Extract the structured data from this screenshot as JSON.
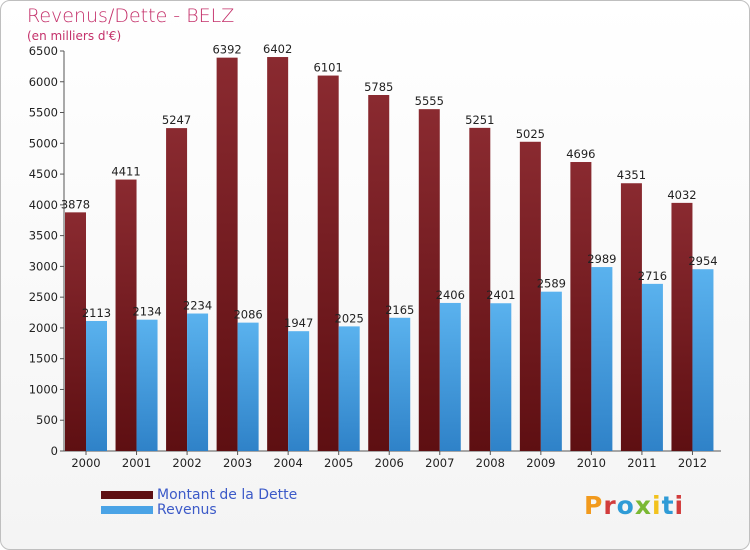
{
  "title": "Revenus/Dette - BELZ",
  "subtitle": "(en milliers d'€)",
  "legend": {
    "debt_label": "Montant de la Dette",
    "revenue_label": "Revenus"
  },
  "logo": "Proxiti",
  "colors": {
    "debt": "#7d1f24",
    "revenue": "#4aa3e6",
    "title": "#c4306a",
    "legend_text": "#3c5ac8"
  },
  "chart_data": {
    "type": "bar",
    "title": "Revenus/Dette - BELZ",
    "subtitle": "(en milliers d'€)",
    "categories": [
      "2000",
      "2001",
      "2002",
      "2003",
      "2004",
      "2005",
      "2006",
      "2007",
      "2008",
      "2009",
      "2010",
      "2011",
      "2012"
    ],
    "series": [
      {
        "name": "Montant de la Dette",
        "values": [
          3878,
          4411,
          5247,
          6392,
          6402,
          6101,
          5785,
          5555,
          5251,
          5025,
          4696,
          4351,
          4032
        ]
      },
      {
        "name": "Revenus",
        "values": [
          2113,
          2134,
          2234,
          2086,
          1947,
          2025,
          2165,
          2406,
          2401,
          2589,
          2989,
          2716,
          2954
        ]
      }
    ],
    "ylim": [
      0,
      6500
    ],
    "yticks": [
      0,
      500,
      1000,
      1500,
      2000,
      2500,
      3000,
      3500,
      4000,
      4500,
      5000,
      5500,
      6000,
      6500
    ],
    "grid": false,
    "legend_position": "bottom-left"
  }
}
